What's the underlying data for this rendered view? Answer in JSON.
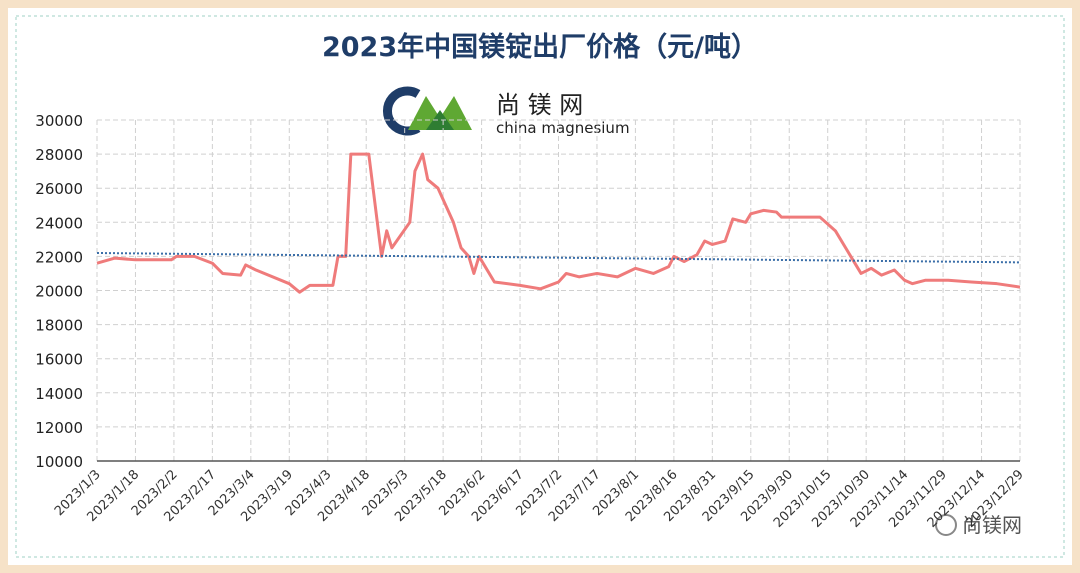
{
  "chart_data": {
    "type": "line",
    "title": "2023年中国镁锭出厂价格（元/吨）",
    "logo": {
      "name": "尚 镁 网",
      "subtitle": "china magnesium"
    },
    "watermark": "尚镁网",
    "x": [
      "2023/1/3",
      "2023/1/10",
      "2023/1/18",
      "2023/2/1",
      "2023/2/3",
      "2023/2/10",
      "2023/2/17",
      "2023/2/21",
      "2023/2/28",
      "2023/3/2",
      "2023/3/6",
      "2023/3/19",
      "2023/3/23",
      "2023/3/27",
      "2023/4/5",
      "2023/4/7",
      "2023/4/10",
      "2023/4/11",
      "2023/4/12",
      "2023/4/19",
      "2023/4/24",
      "2023/4/26",
      "2023/4/28",
      "2023/5/5",
      "2023/5/7",
      "2023/5/10",
      "2023/5/12",
      "2023/5/16",
      "2023/5/19",
      "2023/5/22",
      "2023/5/25",
      "2023/5/28",
      "2023/5/30",
      "2023/6/1",
      "2023/6/3",
      "2023/6/7",
      "2023/6/17",
      "2023/6/25",
      "2023/7/2",
      "2023/7/5",
      "2023/7/10",
      "2023/7/17",
      "2023/7/25",
      "2023/8/1",
      "2023/8/8",
      "2023/8/14",
      "2023/8/16",
      "2023/8/20",
      "2023/8/25",
      "2023/8/28",
      "2023/8/31",
      "2023/9/5",
      "2023/9/8",
      "2023/9/13",
      "2023/9/15",
      "2023/9/20",
      "2023/9/25",
      "2023/9/27",
      "2023/10/12",
      "2023/10/18",
      "2023/10/22",
      "2023/10/26",
      "2023/10/28",
      "2023/11/1",
      "2023/11/5",
      "2023/11/10",
      "2023/11/14",
      "2023/11/17",
      "2023/11/22",
      "2023/12/1",
      "2023/12/10",
      "2023/12/20",
      "2023/12/29"
    ],
    "series": [
      {
        "color": "#ef7b7b",
        "values": [
          21600,
          21900,
          21800,
          21800,
          22000,
          22000,
          21600,
          21000,
          20900,
          21500,
          21200,
          20400,
          19900,
          20300,
          20300,
          22000,
          22000,
          25000,
          28000,
          28000,
          22000,
          23500,
          22500,
          24000,
          27000,
          28000,
          26500,
          26000,
          25000,
          24000,
          22500,
          22000,
          21000,
          22000,
          21500,
          20500,
          20300,
          20100,
          20500,
          21000,
          20800,
          21000,
          20800,
          21300,
          21000,
          21400,
          22000,
          21700,
          22100,
          22900,
          22700,
          22900,
          24200,
          24000,
          24500,
          24700,
          24600,
          24300,
          24300,
          23500,
          22500,
          21500,
          21000,
          21300,
          20900,
          21200,
          20600,
          20400,
          20600,
          20600,
          20500,
          20400,
          20200
        ]
      }
    ],
    "trend": {
      "color": "#3a6ea8",
      "x": [
        "2023/1/3",
        "2023/12/29"
      ],
      "values": [
        22200,
        21650
      ]
    },
    "xlim": [
      "2023/1/3",
      "2023/12/29"
    ],
    "xticks": [
      "2023/1/3",
      "2023/1/18",
      "2023/2/2",
      "2023/2/17",
      "2023/3/4",
      "2023/3/19",
      "2023/4/3",
      "2023/4/18",
      "2023/5/3",
      "2023/5/18",
      "2023/6/2",
      "2023/6/17",
      "2023/7/2",
      "2023/7/17",
      "2023/8/1",
      "2023/8/16",
      "2023/8/31",
      "2023/9/15",
      "2023/9/30",
      "2023/10/15",
      "2023/10/30",
      "2023/11/14",
      "2023/11/29",
      "2023/12/14",
      "2023/12/29"
    ],
    "ylim": [
      10000,
      30000
    ],
    "yticks": [
      10000,
      12000,
      14000,
      16000,
      18000,
      20000,
      22000,
      24000,
      26000,
      28000,
      30000
    ],
    "grid": true
  }
}
